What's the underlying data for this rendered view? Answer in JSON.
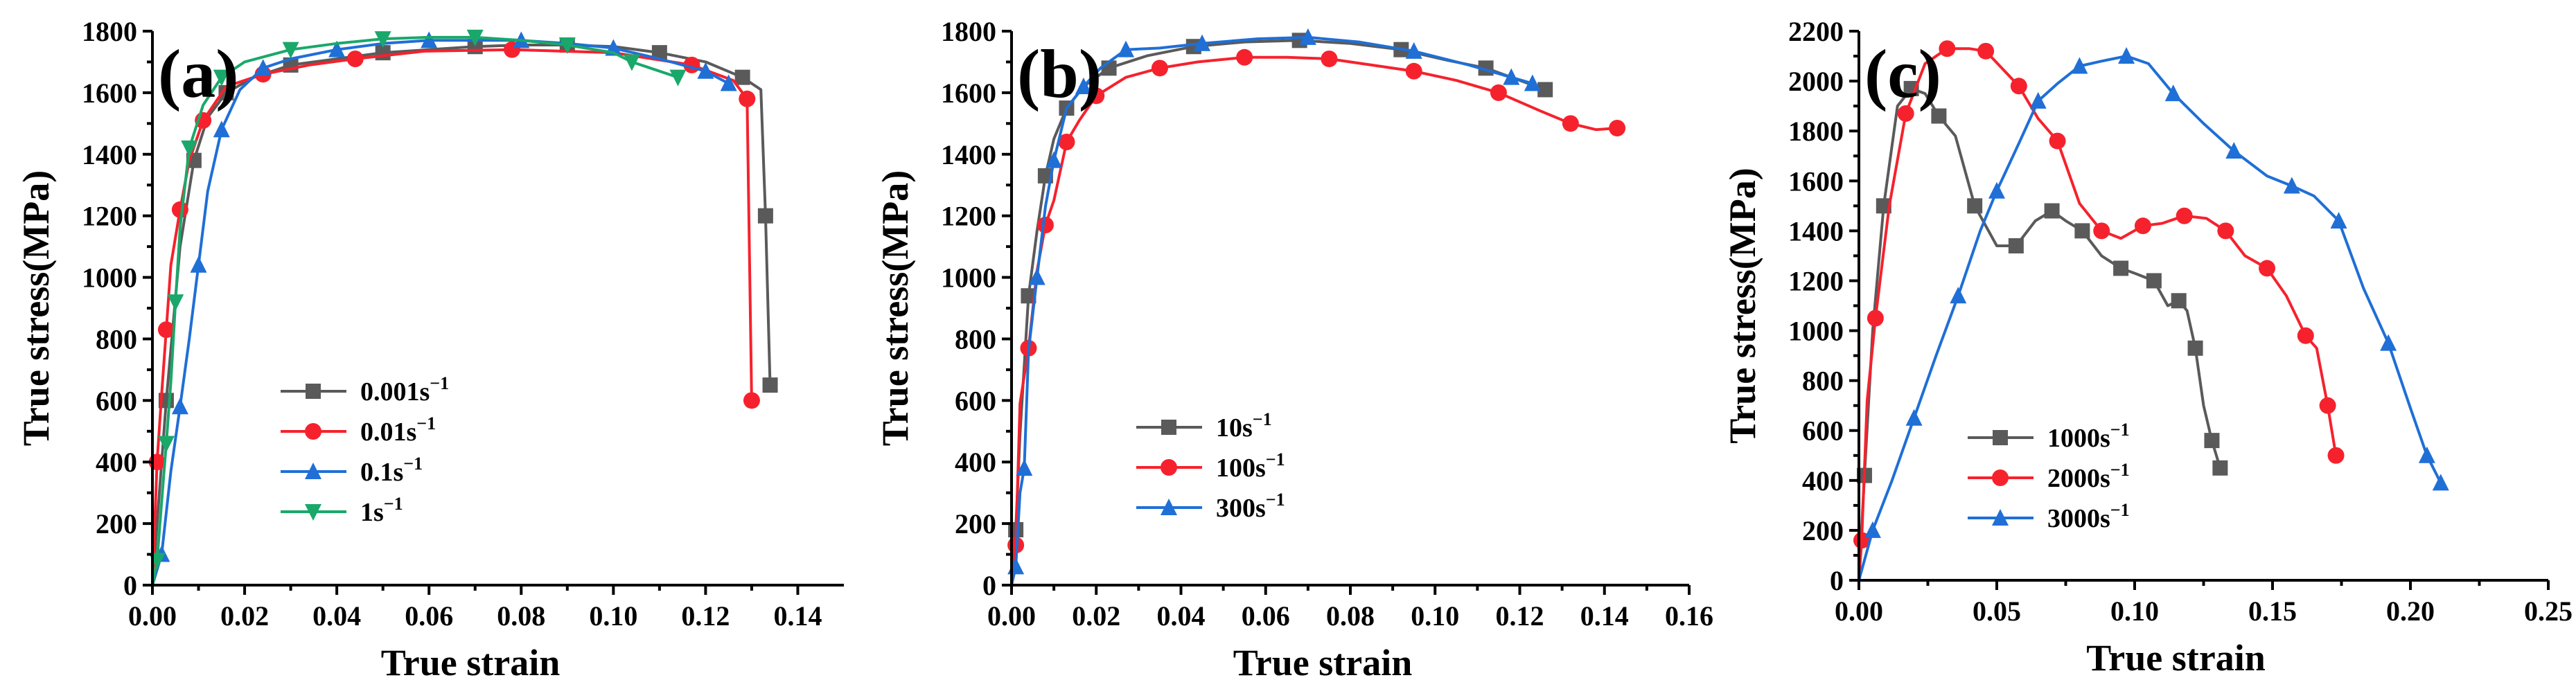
{
  "chart_data": [
    {
      "type": "line",
      "panel_label": "(a)",
      "xlabel": "True strain",
      "ylabel": "True stress(MPa)",
      "xlim": [
        0,
        0.15
      ],
      "ylim": [
        0,
        1800
      ],
      "xticks": [
        0.0,
        0.02,
        0.04,
        0.06,
        0.08,
        0.1,
        0.12,
        0.14
      ],
      "xtick_labels": [
        "0.00",
        "0.02",
        "0.04",
        "0.06",
        "0.08",
        "0.10",
        "0.12",
        "0.14"
      ],
      "yticks": [
        0,
        200,
        400,
        600,
        800,
        1000,
        1200,
        1400,
        1600,
        1800
      ],
      "ytick_labels": [
        "0",
        "200",
        "400",
        "600",
        "800",
        "1000",
        "1200",
        "1400",
        "1600",
        "1800"
      ],
      "legend_position": "lower-center",
      "series": [
        {
          "name": "0.001s",
          "sup": "−1",
          "color": "#5a5a5a",
          "marker": "square",
          "x": [
            0,
            0.003,
            0.006,
            0.009,
            0.012,
            0.016,
            0.022,
            0.03,
            0.04,
            0.05,
            0.06,
            0.07,
            0.08,
            0.09,
            0.1,
            0.11,
            0.12,
            0.128,
            0.132,
            0.133,
            0.134
          ],
          "y": [
            0,
            600,
            1100,
            1380,
            1520,
            1600,
            1650,
            1690,
            1710,
            1730,
            1740,
            1750,
            1755,
            1755,
            1750,
            1730,
            1700,
            1650,
            1610,
            1200,
            650
          ]
        },
        {
          "name": "0.01s",
          "sup": "−1",
          "color": "#f5222d",
          "marker": "circle",
          "x": [
            0,
            0.001,
            0.002,
            0.003,
            0.004,
            0.006,
            0.008,
            0.011,
            0.016,
            0.024,
            0.034,
            0.044,
            0.059,
            0.078,
            0.1,
            0.117,
            0.126,
            0.129,
            0.13
          ],
          "y": [
            0,
            400,
            620,
            830,
            1040,
            1220,
            1380,
            1510,
            1620,
            1660,
            1690,
            1710,
            1735,
            1740,
            1730,
            1690,
            1640,
            1580,
            600
          ]
        },
        {
          "name": "0.1s",
          "sup": "−1",
          "color": "#1f6fd6",
          "marker": "triangle-up",
          "x": [
            0,
            0.002,
            0.004,
            0.006,
            0.008,
            0.01,
            0.012,
            0.015,
            0.019,
            0.024,
            0.03,
            0.04,
            0.05,
            0.06,
            0.07,
            0.08,
            0.09,
            0.1,
            0.11,
            0.12,
            0.125
          ],
          "y": [
            0,
            100,
            370,
            580,
            800,
            1040,
            1280,
            1480,
            1610,
            1680,
            1710,
            1740,
            1760,
            1770,
            1770,
            1770,
            1760,
            1745,
            1710,
            1670,
            1630
          ]
        },
        {
          "name": "1s",
          "sup": "−1",
          "color": "#1aa86a",
          "marker": "triangle-down",
          "x": [
            0,
            0.001,
            0.002,
            0.003,
            0.004,
            0.005,
            0.006,
            0.008,
            0.011,
            0.015,
            0.02,
            0.03,
            0.04,
            0.05,
            0.06,
            0.07,
            0.08,
            0.09,
            0.1,
            0.104,
            0.108,
            0.114
          ],
          "y": [
            0,
            80,
            270,
            460,
            660,
            920,
            1160,
            1420,
            1560,
            1650,
            1700,
            1740,
            1760,
            1775,
            1780,
            1780,
            1770,
            1755,
            1730,
            1700,
            1680,
            1650
          ]
        }
      ]
    },
    {
      "type": "line",
      "panel_label": "(b)",
      "xlabel": "True strain",
      "ylabel": "True stress(MPa)",
      "xlim": [
        0,
        0.16
      ],
      "ylim": [
        0,
        1800
      ],
      "xticks": [
        0.0,
        0.02,
        0.04,
        0.06,
        0.08,
        0.1,
        0.12,
        0.14,
        0.16
      ],
      "xtick_labels": [
        "0.00",
        "0.02",
        "0.04",
        "0.06",
        "0.08",
        "0.10",
        "0.12",
        "0.14",
        "0.16"
      ],
      "yticks": [
        0,
        200,
        400,
        600,
        800,
        1000,
        1200,
        1400,
        1600,
        1800
      ],
      "ytick_labels": [
        "0",
        "200",
        "400",
        "600",
        "800",
        "1000",
        "1200",
        "1400",
        "1600",
        "1800"
      ],
      "legend_position": "lower-center",
      "series": [
        {
          "name": "10s",
          "sup": "−1",
          "color": "#5a5a5a",
          "marker": "square",
          "x": [
            0,
            0.001,
            0.002,
            0.004,
            0.006,
            0.008,
            0.01,
            0.013,
            0.017,
            0.023,
            0.032,
            0.043,
            0.055,
            0.068,
            0.08,
            0.092,
            0.103,
            0.112,
            0.12,
            0.126
          ],
          "y": [
            0,
            180,
            490,
            940,
            1150,
            1330,
            1450,
            1550,
            1620,
            1680,
            1720,
            1750,
            1765,
            1770,
            1760,
            1740,
            1705,
            1680,
            1640,
            1610
          ]
        },
        {
          "name": "100s",
          "sup": "−1",
          "color": "#f5222d",
          "marker": "circle",
          "x": [
            0,
            0.001,
            0.002,
            0.004,
            0.006,
            0.008,
            0.01,
            0.013,
            0.016,
            0.02,
            0.027,
            0.035,
            0.044,
            0.055,
            0.065,
            0.075,
            0.085,
            0.095,
            0.105,
            0.115,
            0.125,
            0.132,
            0.138,
            0.143
          ],
          "y": [
            0,
            130,
            590,
            770,
            1020,
            1170,
            1250,
            1440,
            1510,
            1590,
            1650,
            1680,
            1700,
            1715,
            1715,
            1710,
            1690,
            1670,
            1640,
            1600,
            1540,
            1500,
            1480,
            1485
          ]
        },
        {
          "name": "300s",
          "sup": "−1",
          "color": "#1f6fd6",
          "marker": "triangle-up",
          "x": [
            0,
            0.001,
            0.002,
            0.003,
            0.004,
            0.006,
            0.008,
            0.01,
            0.013,
            0.017,
            0.021,
            0.027,
            0.035,
            0.045,
            0.058,
            0.07,
            0.082,
            0.095,
            0.108,
            0.118,
            0.123
          ],
          "y": [
            0,
            60,
            300,
            380,
            760,
            1000,
            1230,
            1380,
            1550,
            1620,
            1680,
            1740,
            1745,
            1760,
            1775,
            1780,
            1765,
            1735,
            1690,
            1650,
            1630
          ]
        }
      ]
    },
    {
      "type": "line",
      "panel_label": "(c)",
      "xlabel": "True strain",
      "ylabel": "True stress(MPa)",
      "xlim": [
        0,
        0.25
      ],
      "ylim": [
        0,
        2200
      ],
      "xticks": [
        0.0,
        0.05,
        0.1,
        0.15,
        0.2,
        0.25
      ],
      "xtick_labels": [
        "0.00",
        "0.05",
        "0.10",
        "0.15",
        "0.20",
        "0.25"
      ],
      "yticks": [
        0,
        200,
        400,
        600,
        800,
        1000,
        1200,
        1400,
        1600,
        1800,
        2000,
        2200
      ],
      "ytick_labels": [
        "0",
        "200",
        "400",
        "600",
        "800",
        "1000",
        "1200",
        "1400",
        "1600",
        "1800",
        "2000",
        "2200"
      ],
      "legend_position": "lower-center",
      "series": [
        {
          "name": "1000s",
          "sup": "−1",
          "color": "#5a5a5a",
          "marker": "square",
          "x": [
            0,
            0.002,
            0.005,
            0.009,
            0.014,
            0.019,
            0.024,
            0.029,
            0.035,
            0.042,
            0.05,
            0.057,
            0.064,
            0.07,
            0.075,
            0.081,
            0.088,
            0.095,
            0.1,
            0.107,
            0.112,
            0.116,
            0.119,
            0.122,
            0.125,
            0.128,
            0.131
          ],
          "y": [
            0,
            420,
            1000,
            1500,
            1900,
            1970,
            1950,
            1860,
            1780,
            1500,
            1340,
            1340,
            1440,
            1480,
            1440,
            1400,
            1300,
            1250,
            1230,
            1200,
            1100,
            1120,
            1080,
            930,
            700,
            560,
            450
          ]
        },
        {
          "name": "2000s",
          "sup": "−1",
          "color": "#f5222d",
          "marker": "circle",
          "x": [
            0,
            0.001,
            0.003,
            0.006,
            0.011,
            0.017,
            0.024,
            0.032,
            0.04,
            0.046,
            0.052,
            0.058,
            0.065,
            0.072,
            0.08,
            0.088,
            0.095,
            0.103,
            0.11,
            0.118,
            0.126,
            0.133,
            0.14,
            0.148,
            0.155,
            0.162,
            0.166,
            0.17,
            0.173
          ],
          "y": [
            0,
            160,
            720,
            1050,
            1500,
            1870,
            2070,
            2130,
            2130,
            2120,
            2050,
            1980,
            1850,
            1760,
            1510,
            1400,
            1370,
            1420,
            1430,
            1460,
            1450,
            1400,
            1300,
            1250,
            1140,
            980,
            930,
            700,
            500
          ]
        },
        {
          "name": "3000s",
          "sup": "−1",
          "color": "#1f6fd6",
          "marker": "triangle-up",
          "x": [
            0,
            0.005,
            0.012,
            0.02,
            0.028,
            0.036,
            0.044,
            0.05,
            0.058,
            0.065,
            0.072,
            0.08,
            0.088,
            0.097,
            0.105,
            0.114,
            0.125,
            0.136,
            0.148,
            0.157,
            0.165,
            0.174,
            0.183,
            0.192,
            0.2,
            0.206,
            0.211
          ],
          "y": [
            0,
            200,
            400,
            650,
            900,
            1140,
            1400,
            1560,
            1750,
            1920,
            1990,
            2060,
            2080,
            2100,
            2070,
            1950,
            1830,
            1720,
            1620,
            1580,
            1540,
            1440,
            1170,
            950,
            690,
            500,
            390
          ]
        }
      ]
    }
  ]
}
